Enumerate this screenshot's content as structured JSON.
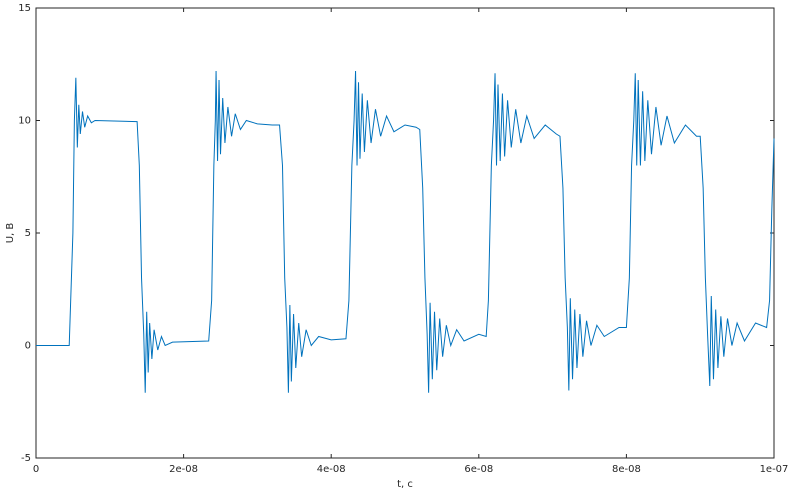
{
  "chart_data": {
    "type": "line",
    "xlabel": "t, c",
    "ylabel": "U, B",
    "color": "#0072bd",
    "xlim": [
      0,
      1e-07
    ],
    "ylim": [
      -5,
      15
    ],
    "xticks": [
      0,
      {
        "value": 2e-08,
        "label": "2e-08"
      },
      {
        "value": 4e-08,
        "label": "4e-08"
      },
      {
        "value": 6e-08,
        "label": "6e-08"
      },
      {
        "value": 8e-08,
        "label": "8e-08"
      },
      {
        "value": 1e-07,
        "label": "1e-07"
      }
    ],
    "yticks": [
      -5,
      0,
      5,
      10,
      15
    ],
    "grid": false,
    "x": [
      0,
      4.5e-09,
      5e-09,
      5.2e-09,
      5.4e-09,
      5.6e-09,
      5.8e-09,
      6e-09,
      6.3e-09,
      6.6e-09,
      7e-09,
      7.5e-09,
      8e-09,
      1.37e-08,
      1.4e-08,
      1.43e-08,
      1.46e-08,
      1.48e-08,
      1.5e-08,
      1.52e-08,
      1.54e-08,
      1.57e-08,
      1.6e-08,
      1.65e-08,
      1.7e-08,
      1.75e-08,
      1.85e-08,
      2.34e-08,
      2.38e-08,
      2.41e-08,
      2.43e-08,
      2.44e-08,
      2.46e-08,
      2.48e-08,
      2.5e-08,
      2.53e-08,
      2.56e-08,
      2.6e-08,
      2.65e-08,
      2.7e-08,
      2.77e-08,
      2.85e-08,
      3e-08,
      3.2e-08,
      3.3e-08,
      3.34e-08,
      3.37e-08,
      3.4e-08,
      3.42e-08,
      3.44e-08,
      3.46e-08,
      3.49e-08,
      3.52e-08,
      3.56e-08,
      3.6e-08,
      3.66e-08,
      3.73e-08,
      3.83e-08,
      4e-08,
      4.2e-08,
      4.24e-08,
      4.28e-08,
      4.31e-08,
      4.33e-08,
      4.35e-08,
      4.37e-08,
      4.39e-08,
      4.42e-08,
      4.45e-08,
      4.49e-08,
      4.54e-08,
      4.6e-08,
      4.67e-08,
      4.75e-08,
      4.85e-08,
      5e-08,
      5.15e-08,
      5.2e-08,
      5.24e-08,
      5.27e-08,
      5.3e-08,
      5.32e-08,
      5.34e-08,
      5.37e-08,
      5.4e-08,
      5.43e-08,
      5.47e-08,
      5.51e-08,
      5.56e-08,
      5.62e-08,
      5.7e-08,
      5.8e-08,
      6e-08,
      6.1e-08,
      6.13e-08,
      6.17e-08,
      6.2e-08,
      6.22e-08,
      6.24e-08,
      6.26e-08,
      6.29e-08,
      6.32e-08,
      6.35e-08,
      6.39e-08,
      6.44e-08,
      6.5e-08,
      6.57e-08,
      6.65e-08,
      6.75e-08,
      6.9e-08,
      7.05e-08,
      7.1e-08,
      7.14e-08,
      7.17e-08,
      7.2e-08,
      7.22e-08,
      7.24e-08,
      7.27e-08,
      7.3e-08,
      7.33e-08,
      7.37e-08,
      7.41e-08,
      7.46e-08,
      7.52e-08,
      7.6e-08,
      7.7e-08,
      7.9e-08,
      8e-08,
      8.04e-08,
      8.07e-08,
      8.1e-08,
      8.12e-08,
      8.14e-08,
      8.16e-08,
      8.19e-08,
      8.22e-08,
      8.25e-08,
      8.29e-08,
      8.34e-08,
      8.4e-08,
      8.47e-08,
      8.55e-08,
      8.65e-08,
      8.8e-08,
      8.95e-08,
      9e-08,
      9.04e-08,
      9.07e-08,
      9.1e-08,
      9.13e-08,
      9.15e-08,
      9.18e-08,
      9.21e-08,
      9.24e-08,
      9.28e-08,
      9.32e-08,
      9.37e-08,
      9.43e-08,
      9.5e-08,
      9.6e-08,
      9.75e-08,
      9.9e-08,
      9.94e-08,
      9.97e-08,
      1e-07
    ],
    "values": [
      0,
      0,
      5,
      10,
      11.9,
      8.8,
      10.7,
      9.4,
      10.4,
      9.7,
      10.2,
      9.9,
      10,
      9.95,
      8,
      3,
      0.5,
      -2.1,
      1.5,
      -1.2,
      1.0,
      -0.6,
      0.7,
      -0.2,
      0.4,
      0,
      0.15,
      0.2,
      2,
      8,
      10,
      12.2,
      8.2,
      11.8,
      8.5,
      11,
      9,
      10.6,
      9.3,
      10.3,
      9.6,
      10,
      9.85,
      9.8,
      9.8,
      8,
      3,
      0.8,
      -2.1,
      1.8,
      -1.6,
      1.4,
      -1,
      1.0,
      -0.5,
      0.7,
      0,
      0.4,
      0.25,
      0.3,
      2,
      8,
      10,
      12.2,
      8,
      11.7,
      8.3,
      11.2,
      8.6,
      10.9,
      9,
      10.5,
      9.3,
      10.2,
      9.5,
      9.8,
      9.7,
      9.6,
      7,
      3,
      0.5,
      -2.1,
      1.9,
      -1.5,
      1.5,
      -1.1,
      1.2,
      -0.5,
      0.9,
      0,
      0.7,
      0.2,
      0.5,
      0.4,
      2,
      8,
      10,
      12.1,
      8,
      11.6,
      8.2,
      11.2,
      8.4,
      10.9,
      8.8,
      10.5,
      9,
      10.2,
      9.2,
      9.8,
      9.4,
      9.3,
      7,
      3,
      0.8,
      -2,
      2.1,
      -1.5,
      1.6,
      -1,
      1.4,
      -0.5,
      1.1,
      0,
      0.9,
      0.4,
      0.8,
      0.8,
      3,
      8,
      10,
      12.1,
      8,
      11.8,
      8,
      11.3,
      8.2,
      10.9,
      8.5,
      10.6,
      8.9,
      10.2,
      9,
      9.8,
      9.3,
      9.3,
      7,
      3,
      0.5,
      -1.8,
      2.2,
      -1.5,
      1.6,
      -1,
      1.3,
      -0.5,
      1.2,
      0,
      1.0,
      0.2,
      1.0,
      0.8,
      2,
      6,
      9.2
    ]
  }
}
